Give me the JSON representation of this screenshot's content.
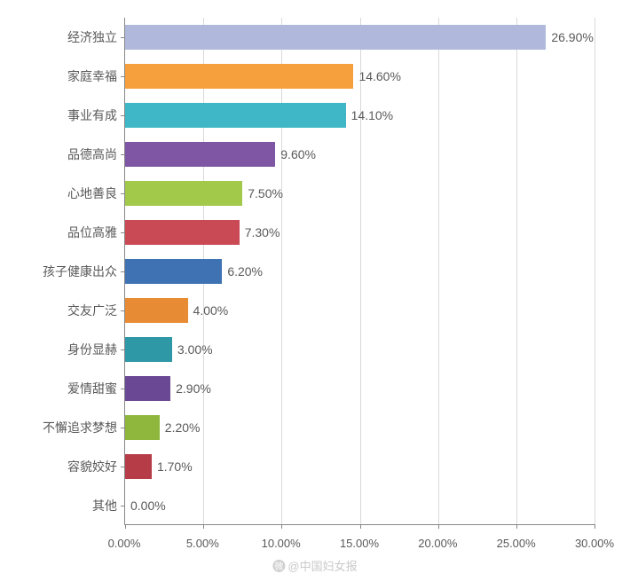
{
  "chart": {
    "type": "bar-horizontal",
    "xlim": [
      0,
      30
    ],
    "xtick_step": 5,
    "xtick_format_suffix": "%",
    "xtick_decimals": 2,
    "background_color": "#ffffff",
    "grid_color": "#d9d9d9",
    "axis_color": "#878787",
    "label_color": "#595959",
    "label_fontsize": 14,
    "tick_fontsize": 13,
    "bar_band_height": 44,
    "bar_fill_ratio": 0.64,
    "categories": [
      {
        "label": "经济独立",
        "value": 26.9,
        "value_label": "26.90%",
        "color": "#b0b9db"
      },
      {
        "label": "家庭幸福",
        "value": 14.6,
        "value_label": "14.60%",
        "color": "#f6a03d"
      },
      {
        "label": "事业有成",
        "value": 14.1,
        "value_label": "14.10%",
        "color": "#3fb7c6"
      },
      {
        "label": "品德高尚",
        "value": 9.6,
        "value_label": "9.60%",
        "color": "#7e56a3"
      },
      {
        "label": "心地善良",
        "value": 7.5,
        "value_label": "7.50%",
        "color": "#a2c94a"
      },
      {
        "label": "品位高雅",
        "value": 7.3,
        "value_label": "7.30%",
        "color": "#c94a54"
      },
      {
        "label": "孩子健康出众",
        "value": 6.2,
        "value_label": "6.20%",
        "color": "#3f72b2"
      },
      {
        "label": "交友广泛",
        "value": 4.0,
        "value_label": "4.00%",
        "color": "#e88b35"
      },
      {
        "label": "身份显赫",
        "value": 3.0,
        "value_label": "3.00%",
        "color": "#2f98a7"
      },
      {
        "label": "爱情甜蜜",
        "value": 2.9,
        "value_label": "2.90%",
        "color": "#6a4893"
      },
      {
        "label": "不懈追求梦想",
        "value": 2.2,
        "value_label": "2.20%",
        "color": "#8fb63d"
      },
      {
        "label": "容貌姣好",
        "value": 1.7,
        "value_label": "1.70%",
        "color": "#b63d47"
      },
      {
        "label": "其他",
        "value": 0.0,
        "value_label": "0.00%",
        "color": "#3460a0"
      }
    ],
    "xticks": [
      {
        "value": 0.0,
        "label": "0.00%"
      },
      {
        "value": 5.0,
        "label": "5.00%"
      },
      {
        "value": 10.0,
        "label": "10.00%"
      },
      {
        "value": 15.0,
        "label": "15.00%"
      },
      {
        "value": 20.0,
        "label": "20.00%"
      },
      {
        "value": 25.0,
        "label": "25.00%"
      },
      {
        "value": 30.0,
        "label": "30.00%"
      }
    ]
  },
  "watermark": {
    "icon": "微",
    "text": "@中国妇女报",
    "color": "#c9c9c9"
  }
}
